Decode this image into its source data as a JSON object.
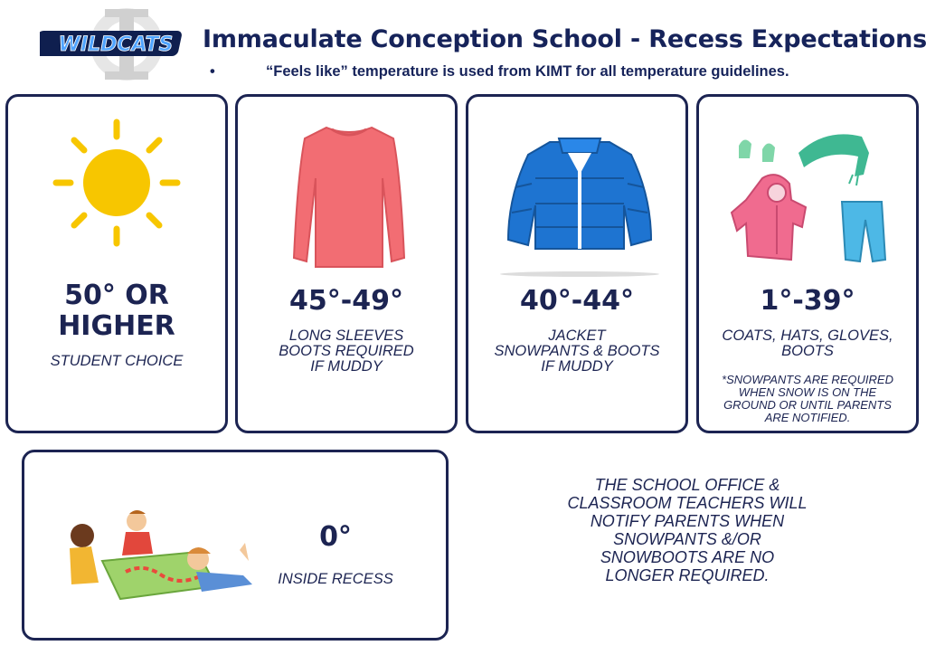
{
  "header": {
    "logo_text": "WILDCATS",
    "title": "Immaculate Conception School - Recess Expectations",
    "bullet": "•",
    "subtitle": "“Feels like” temperature is used from KIMT for all temperature guidelines."
  },
  "cards": [
    {
      "temp_line1": "50° OR",
      "temp_line2": "HIGHER",
      "desc": "STUDENT CHOICE",
      "icon": "sun-icon"
    },
    {
      "temp": "45°-49°",
      "desc_lines": [
        "LONG SLEEVES",
        "BOOTS REQUIRED",
        "IF MUDDY"
      ],
      "icon": "long-sleeve-shirt-icon"
    },
    {
      "temp": "40°-44°",
      "desc_lines": [
        "JACKET",
        "SNOWPANTS & BOOTS",
        "IF MUDDY"
      ],
      "icon": "puffer-jacket-icon"
    },
    {
      "temp": "1°-39°",
      "desc_lines": [
        "COATS, HATS, GLOVES,",
        "BOOTS"
      ],
      "note_lines": [
        "*SNOWPANTS ARE REQUIRED",
        "WHEN SNOW  IS ON THE",
        "GROUND OR UNTIL PARENTS",
        "ARE NOTIFIED."
      ],
      "icon": "winter-clothes-icon"
    },
    {
      "temp": "0°",
      "desc": "INSIDE RECESS",
      "icon": "kids-board-game-icon"
    }
  ],
  "notice_lines": [
    "THE SCHOOL OFFICE &",
    "CLASSROOM TEACHERS WILL",
    "NOTIFY PARENTS WHEN",
    "SNOWPANTS &/OR",
    "SNOWBOOTS ARE NO",
    "LONGER REQUIRED."
  ],
  "colors": {
    "navy": "#1c2452",
    "sun": "#f7c600",
    "shirt": "#f26d73",
    "jacket": "#1e74d1",
    "logo_blue": "#2b73c2"
  }
}
